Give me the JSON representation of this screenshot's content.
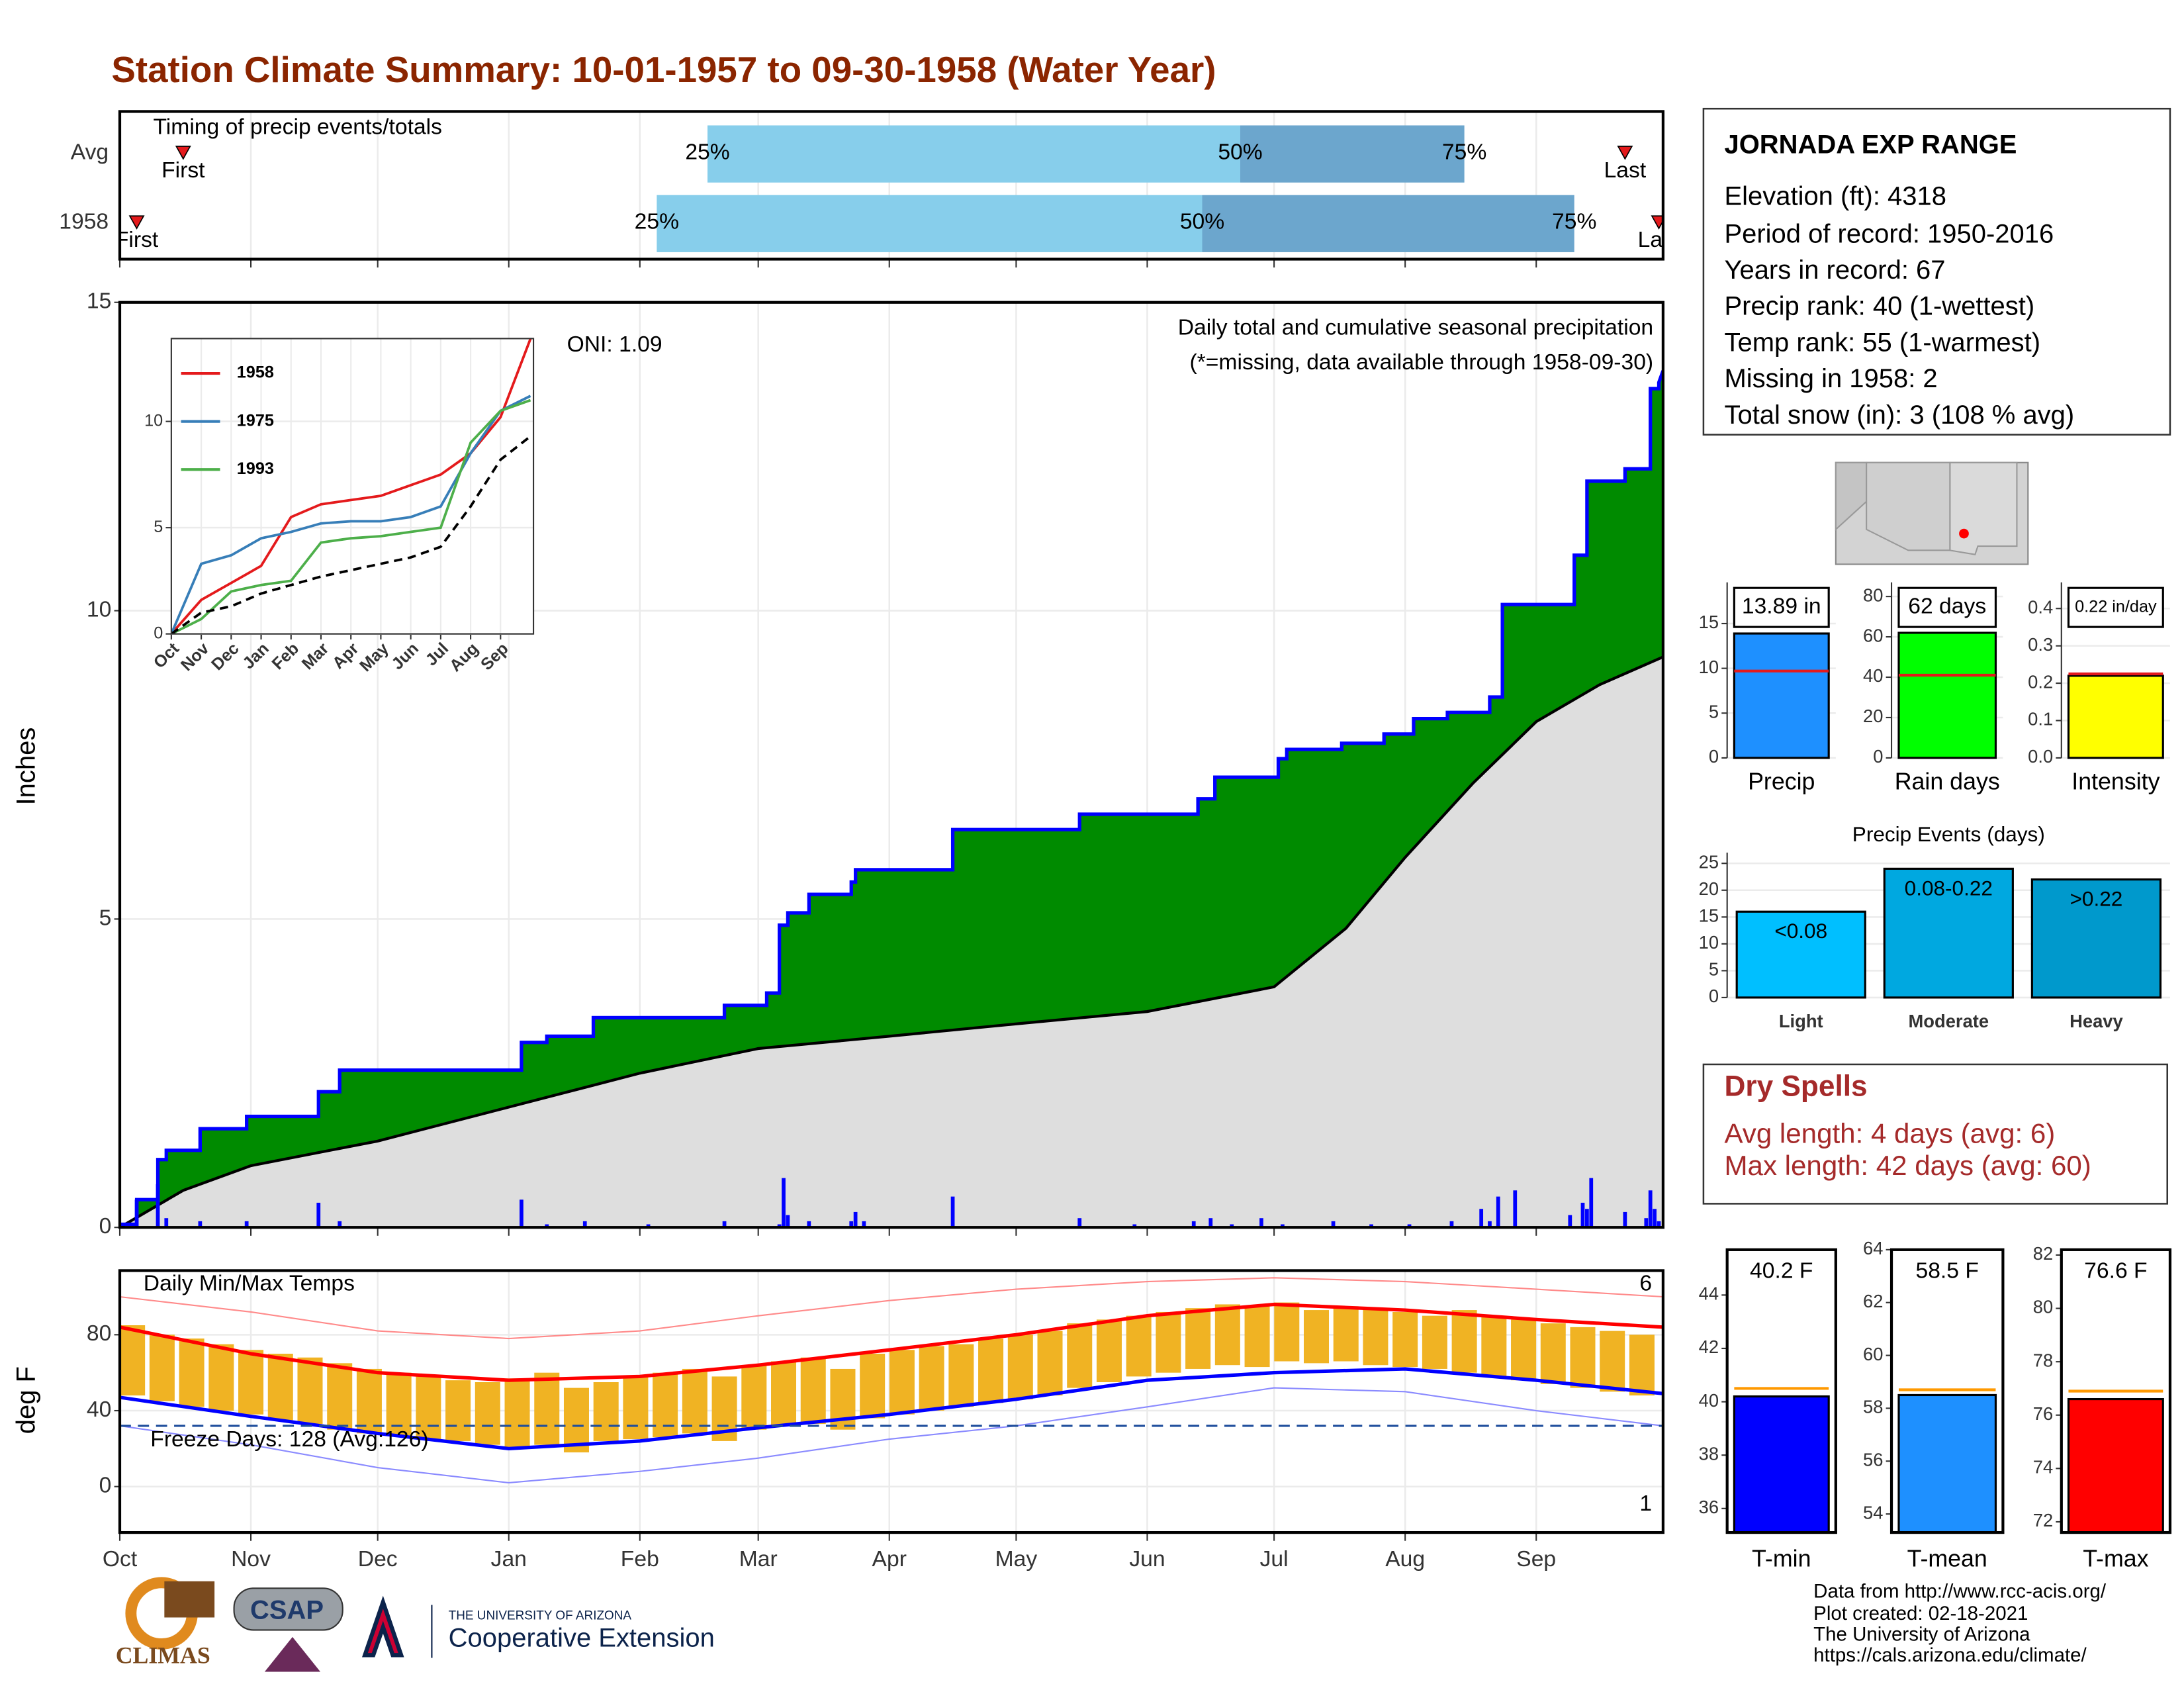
{
  "title": "Station Climate Summary: 10-01-1957 to 09-30-1958 (Water Year)",
  "chart_data": [
    {
      "type": "timing",
      "title": "Timing of precip events/totals",
      "xlim": [
        0,
        365
      ],
      "xticks": [
        0,
        31,
        61,
        92,
        123,
        151,
        182,
        212,
        243,
        273,
        304,
        335
      ],
      "marker_labels": [
        "First",
        "25%",
        "50%",
        "75%",
        "Last"
      ],
      "colors": [
        "#87ceeb",
        "#6ca6cd"
      ],
      "marker_color": "#e41a1c",
      "rows": [
        {
          "label": "Avg",
          "first": 15,
          "q25": 139,
          "q50": 265,
          "q75": 318,
          "last": 356
        },
        {
          "label": "1958",
          "first": 4,
          "q25": 127,
          "q50": 256,
          "q75": 344,
          "last": 364
        }
      ]
    },
    {
      "type": "area",
      "ylabel": "Inches",
      "annotations": [
        "ONI: 1.09",
        "Daily total and cumulative seasonal precipitation",
        "(*=missing, data available through 1958-09-30)"
      ],
      "annotation_colors": [
        "#000000",
        "#000000",
        "#e41a1c"
      ],
      "xlim": [
        0,
        365
      ],
      "xticks": [
        0,
        31,
        61,
        92,
        123,
        151,
        182,
        212,
        243,
        273,
        304,
        335
      ],
      "ylim": [
        0,
        15
      ],
      "yticks": [
        0,
        5,
        10,
        15
      ],
      "grid": true,
      "cumulative": {
        "color": "#008b00",
        "line_color": "#0000ff",
        "x": [
          0,
          4,
          4,
          9,
          9,
          11,
          11,
          19,
          19,
          30,
          30,
          47,
          47,
          52,
          52,
          95,
          95,
          101,
          101,
          112,
          112,
          143,
          143,
          153,
          153,
          156,
          156,
          158,
          158,
          163,
          163,
          173,
          173,
          174,
          174,
          197,
          197,
          227,
          227,
          255,
          255,
          259,
          259,
          274,
          274,
          276,
          276,
          289,
          289,
          299,
          299,
          306,
          306,
          314,
          314,
          324,
          324,
          327,
          327,
          344,
          344,
          347,
          347,
          356,
          356,
          362,
          362,
          364,
          364,
          365
        ],
        "values": [
          0.05,
          0.05,
          0.45,
          0.45,
          1.1,
          1.1,
          1.25,
          1.25,
          1.6,
          1.6,
          1.8,
          1.8,
          2.2,
          2.2,
          2.55,
          2.55,
          3.0,
          3.0,
          3.1,
          3.1,
          3.4,
          3.4,
          3.6,
          3.6,
          3.8,
          3.8,
          4.9,
          4.9,
          5.1,
          5.1,
          5.4,
          5.4,
          5.6,
          5.6,
          5.8,
          5.8,
          6.45,
          6.45,
          6.7,
          6.7,
          6.95,
          6.95,
          7.3,
          7.3,
          7.6,
          7.6,
          7.75,
          7.75,
          7.85,
          7.85,
          8.0,
          8.0,
          8.25,
          8.25,
          8.35,
          8.35,
          8.6,
          8.6,
          10.1,
          10.1,
          10.9,
          10.9,
          12.1,
          12.1,
          12.3,
          12.3,
          13.6,
          13.6,
          13.7,
          13.89
        ]
      },
      "average": {
        "color": "#dedede",
        "line_color": "#000000",
        "x": [
          0,
          15,
          31,
          61,
          92,
          123,
          151,
          182,
          212,
          243,
          273,
          290,
          304,
          320,
          335,
          350,
          365
        ],
        "values": [
          0,
          0.6,
          1.0,
          1.4,
          1.95,
          2.5,
          2.9,
          3.1,
          3.3,
          3.5,
          3.9,
          4.85,
          6.0,
          7.2,
          8.2,
          8.8,
          9.25
        ]
      },
      "daily": {
        "color": "#0000ff",
        "x": [
          4,
          9,
          11,
          19,
          30,
          47,
          52,
          95,
          101,
          110,
          125,
          143,
          156,
          157,
          158,
          163,
          173,
          174,
          176,
          197,
          227,
          240,
          254,
          258,
          263,
          270,
          275,
          287,
          296,
          305,
          315,
          322,
          324,
          326,
          330,
          343,
          346,
          347,
          348,
          356,
          361,
          362,
          363,
          364
        ],
        "values": [
          0.45,
          0.7,
          0.15,
          0.1,
          0.1,
          0.4,
          0.1,
          0.45,
          0.05,
          0.1,
          0.05,
          0.1,
          0.05,
          0.8,
          0.2,
          0.1,
          0.1,
          0.25,
          0.1,
          0.5,
          0.15,
          0.05,
          0.1,
          0.15,
          0.05,
          0.15,
          0.05,
          0.1,
          0.05,
          0.05,
          0.1,
          0.3,
          0.1,
          0.5,
          0.6,
          0.2,
          0.4,
          0.3,
          0.8,
          0.25,
          0.15,
          0.6,
          0.3,
          0.1
        ]
      }
    },
    {
      "type": "line",
      "legend": "top-left",
      "xlim": [
        0,
        12.1
      ],
      "x": [
        0,
        1,
        2,
        3,
        4,
        5,
        6,
        7,
        8,
        9,
        10,
        11,
        12
      ],
      "xticks": [
        {
          "value": 0,
          "label": "Oct"
        },
        {
          "value": 1,
          "label": "Nov"
        },
        {
          "value": 2,
          "label": "Dec"
        },
        {
          "value": 3,
          "label": "Jan"
        },
        {
          "value": 4,
          "label": "Feb"
        },
        {
          "value": 5,
          "label": "Mar"
        },
        {
          "value": 6,
          "label": "Apr"
        },
        {
          "value": 7,
          "label": "May"
        },
        {
          "value": 8,
          "label": "Jun"
        },
        {
          "value": 9,
          "label": "Jul"
        },
        {
          "value": 10,
          "label": "Aug"
        },
        {
          "value": 11,
          "label": "Sep"
        }
      ],
      "ylim": [
        0,
        13.9
      ],
      "yticks": [
        0,
        5,
        10
      ],
      "series": [
        {
          "name": "1958",
          "color": "#e41a1c",
          "values": [
            0,
            1.6,
            2.4,
            3.2,
            5.5,
            6.1,
            6.3,
            6.5,
            7.0,
            7.5,
            8.5,
            10.2,
            13.89
          ]
        },
        {
          "name": "1975",
          "color": "#377eb8",
          "values": [
            0,
            3.3,
            3.7,
            4.5,
            4.8,
            5.2,
            5.3,
            5.3,
            5.5,
            6.0,
            8.5,
            10.5,
            11.2
          ]
        },
        {
          "name": "1993",
          "color": "#4daf4a",
          "values": [
            0,
            0.7,
            2.0,
            2.3,
            2.5,
            4.3,
            4.5,
            4.6,
            4.8,
            5.0,
            9.0,
            10.5,
            11.0
          ]
        },
        {
          "color": "#000000",
          "dash": true,
          "values": [
            0,
            1.0,
            1.3,
            1.9,
            2.3,
            2.7,
            3.0,
            3.3,
            3.6,
            4.1,
            6.0,
            8.2,
            9.3
          ]
        }
      ]
    },
    {
      "type": "bar",
      "categories": [
        "Precip"
      ],
      "values": [
        13.89
      ],
      "value_labels": [
        "13.89 in"
      ],
      "average": 9.7,
      "average_color": "#e41a1c",
      "color": "#1e90ff",
      "ylim": [
        0,
        19.6
      ],
      "yticks": [
        0,
        5,
        10,
        15
      ]
    },
    {
      "type": "bar",
      "categories": [
        "Rain days"
      ],
      "values": [
        62
      ],
      "value_labels": [
        "62 days"
      ],
      "average": 41,
      "average_color": "#e41a1c",
      "color": "#00ff00",
      "ylim": [
        0,
        87
      ],
      "yticks": [
        0,
        20,
        40,
        60,
        80
      ]
    },
    {
      "type": "bar",
      "categories": [
        "Intensity"
      ],
      "values": [
        0.22
      ],
      "value_labels": [
        "0.22 in/day"
      ],
      "average": 0.225,
      "average_color": "#e41a1c",
      "color": "#ffff00",
      "ylim": [
        0,
        0.47
      ],
      "yticks": [
        {
          "value": 0,
          "label": "0.0"
        },
        0.1,
        0.2,
        0.3,
        0.4
      ]
    },
    {
      "type": "bar",
      "title": "Precip Events (days)",
      "categories": [
        "Light",
        "Moderate",
        "Heavy"
      ],
      "values": [
        16,
        24,
        22
      ],
      "bar_labels": [
        "<0.08",
        "0.08-0.22",
        ">0.22"
      ],
      "colors": [
        "#00bfff",
        "#00a8e0",
        "#0099cc"
      ],
      "ylim": [
        0,
        27
      ],
      "yticks": [
        0,
        5,
        10,
        15,
        20,
        25
      ]
    },
    {
      "type": "range",
      "title": "Daily Min/Max Temps",
      "ylabel": "deg F",
      "xlim": [
        0,
        365
      ],
      "xticks": [
        {
          "value": 0,
          "label": "Oct"
        },
        {
          "value": 31,
          "label": "Nov"
        },
        {
          "value": 61,
          "label": "Dec"
        },
        {
          "value": 92,
          "label": "Jan"
        },
        {
          "value": 123,
          "label": "Feb"
        },
        {
          "value": 151,
          "label": "Mar"
        },
        {
          "value": 182,
          "label": "Apr"
        },
        {
          "value": 212,
          "label": "May"
        },
        {
          "value": 243,
          "label": "Jun"
        },
        {
          "value": 273,
          "label": "Jul"
        },
        {
          "value": 304,
          "label": "Aug"
        },
        {
          "value": 335,
          "label": "Sep"
        }
      ],
      "ylim": [
        -24.2,
        113.8
      ],
      "yticks": [
        0,
        40,
        80
      ],
      "grid": true,
      "x_days": [
        3,
        10,
        17,
        24,
        31,
        38,
        45,
        52,
        59,
        66,
        73,
        80,
        87,
        94,
        101,
        108,
        115,
        122,
        129,
        136,
        143,
        150,
        157,
        164,
        171,
        178,
        185,
        192,
        199,
        206,
        213,
        220,
        227,
        234,
        241,
        248,
        255,
        262,
        269,
        276,
        283,
        290,
        297,
        304,
        311,
        318,
        325,
        332,
        339,
        346,
        353,
        360
      ],
      "ranges": {
        "color": "#f0b323",
        "min": [
          48,
          45,
          42,
          40,
          38,
          35,
          33,
          30,
          28,
          27,
          25,
          24,
          22,
          20,
          22,
          18,
          24,
          25,
          26,
          28,
          24,
          30,
          32,
          33,
          30,
          36,
          38,
          40,
          42,
          44,
          46,
          48,
          52,
          55,
          58,
          60,
          62,
          64,
          63,
          66,
          65,
          66,
          64,
          63,
          62,
          60,
          58,
          56,
          54,
          52,
          50,
          48
        ],
        "max": [
          85,
          80,
          78,
          75,
          72,
          70,
          68,
          65,
          62,
          60,
          58,
          56,
          55,
          57,
          60,
          52,
          55,
          58,
          60,
          62,
          58,
          64,
          66,
          68,
          62,
          70,
          72,
          74,
          75,
          78,
          80,
          82,
          86,
          88,
          90,
          92,
          94,
          96,
          95,
          97,
          93,
          95,
          94,
          92,
          90,
          93,
          90,
          88,
          86,
          84,
          82,
          80
        ]
      },
      "lines_x": [
        0,
        31,
        61,
        92,
        123,
        151,
        182,
        212,
        243,
        273,
        304,
        335,
        365
      ],
      "lines": [
        {
          "color": "#ff8a8a",
          "width": 1,
          "values": [
            100,
            92,
            82,
            78,
            82,
            90,
            98,
            104,
            108,
            110,
            108,
            104,
            100
          ]
        },
        {
          "color": "#8a8aff",
          "width": 1,
          "values": [
            32,
            22,
            10,
            2,
            8,
            15,
            25,
            32,
            42,
            52,
            50,
            40,
            32
          ]
        },
        {
          "color": "#ff0000",
          "width": 2.5,
          "values": [
            84,
            70,
            60,
            56,
            58,
            64,
            72,
            80,
            90,
            96,
            93,
            88,
            84
          ]
        },
        {
          "color": "#0000ff",
          "width": 2.5,
          "values": [
            47,
            37,
            28,
            20,
            24,
            31,
            38,
            46,
            56,
            60,
            62,
            56,
            49
          ]
        }
      ],
      "freeze_line": 32,
      "freeze_color": "#1f4e9c",
      "freeze_label": "Freeze Days: 128 (Avg:126)",
      "record_high_days": 6,
      "record_low_days": 1
    },
    {
      "type": "bar",
      "frame": true,
      "categories": [
        "T-min"
      ],
      "values": [
        40.2
      ],
      "value_labels": [
        "40.2 F"
      ],
      "average": 40.5,
      "average_color": "#ff9900",
      "color": "#0000ff",
      "ylim": [
        35.1,
        45.7
      ],
      "yticks": [
        36,
        38,
        40,
        42,
        44
      ]
    },
    {
      "type": "bar",
      "frame": true,
      "categories": [
        "T-mean"
      ],
      "values": [
        58.5
      ],
      "value_labels": [
        "58.5 F"
      ],
      "average": 58.7,
      "average_color": "#ff9900",
      "color": "#1e90ff",
      "ylim": [
        53.3,
        64
      ],
      "yticks": [
        54,
        56,
        58,
        60,
        62,
        64
      ]
    },
    {
      "type": "bar",
      "frame": true,
      "categories": [
        "T-max"
      ],
      "values": [
        76.6
      ],
      "value_labels": [
        "76.6 F"
      ],
      "average": 76.9,
      "average_color": "#ff9900",
      "color": "#ff0000",
      "ylim": [
        71.6,
        82.2
      ],
      "yticks": [
        72,
        74,
        76,
        78,
        80,
        82
      ]
    }
  ],
  "station_info": {
    "name": "JORNADA EXP RANGE",
    "lines": [
      "Elevation (ft): 4318",
      "Period of record: 1950-2016",
      "Years in record: 67",
      "Precip rank: 40 (1-wettest)",
      "Temp rank: 55 (1-warmest)",
      "Missing in 1958: 2",
      "Total snow (in): 3 (108 % avg)"
    ]
  },
  "dry_spells": {
    "title": "Dry Spells",
    "lines": [
      "Avg length: 4 days (avg: 6)",
      "Max length: 42 days (avg: 60)"
    ]
  },
  "footer": {
    "lines": [
      "Data from http://www.rcc-acis.org/",
      "Plot created: 02-18-2021",
      "The University of Arizona",
      "https://cals.arizona.edu/climate/"
    ]
  },
  "logos": {
    "climas": "CLIMAS",
    "csap": "CSAP",
    "university": "THE UNIVERSITY OF ARIZONA",
    "extension": "Cooperative Extension"
  }
}
